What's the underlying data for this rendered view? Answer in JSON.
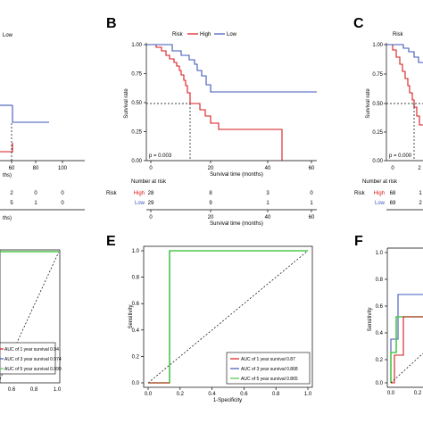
{
  "panels": {
    "A": {
      "legend_low": "Low",
      "xticks": [
        "60",
        "80",
        "100"
      ],
      "xlabel_tail": "ths)",
      "risk_counts": {
        "high": [
          "2",
          "0",
          "0"
        ],
        "low": [
          "5",
          "1",
          "0"
        ]
      },
      "xlabel2_tail": "ths)"
    },
    "B": {
      "letter": "B",
      "legend_title": "Risk",
      "legend_high": "High",
      "legend_low": "Low",
      "ylabel": "Survival rate",
      "yticks": [
        "0.00",
        "0.25",
        "0.50",
        "0.75",
        "1.00"
      ],
      "xticks": [
        "0",
        "20",
        "40",
        "60"
      ],
      "xlabel": "Survival time (months)",
      "pvalue": "p = 0.003",
      "risk_title": "Number at risk",
      "risk_group_label": "Risk",
      "risk_rows": [
        {
          "label": "High",
          "counts": [
            "28",
            "8",
            "3",
            "0"
          ]
        },
        {
          "label": "Low",
          "counts": [
            "29",
            "9",
            "1",
            "1"
          ]
        }
      ],
      "risk_xticks": [
        "0",
        "20",
        "40",
        "60"
      ],
      "risk_xlabel": "Survival time (months)"
    },
    "C": {
      "letter": "C",
      "legend_title": "Risk",
      "ytick_top": "1.00",
      "ytick_75": "0.75",
      "ytick_50": "0.50",
      "ytick_25": "0.25",
      "ytick_0": "0.00",
      "ylabel": "Survival rate",
      "pvalue": "p = 0.000",
      "xticks": [
        "0",
        "2"
      ],
      "risk_title": "Number at risk",
      "risk_group_label": "Risk",
      "risk_high_label": "High",
      "risk_low_label": "Low",
      "risk_high": [
        "68",
        "1"
      ],
      "risk_low": [
        "69",
        "2"
      ]
    },
    "D": {
      "auc_labels": [
        "AUC of 1 year survival  0.94",
        "AUC of 3 year survival  0.974",
        "AUC of 5 year survival  0.999"
      ],
      "xticks": [
        "0.6",
        "0.8",
        "1.0"
      ]
    },
    "E": {
      "letter": "E",
      "ylabel": "Sensitivity",
      "yticks": [
        "0.0",
        "0.2",
        "0.4",
        "0.6",
        "0.8",
        "1.0"
      ],
      "xticks": [
        "0.0",
        "0.2",
        "0.4",
        "0.6",
        "0.8",
        "1.0"
      ],
      "xlabel": "1-Specificity",
      "auc_labels": [
        "AUC of 1 year survival  0.87",
        "AUC of 3 year survival  0.868",
        "AUC of 5 year survival  0.865"
      ]
    },
    "F": {
      "letter": "F",
      "ylabel": "Sensitivity",
      "ytick_top": "1.0",
      "ytick_8": "0.8",
      "ytick_6": "0.6",
      "ytick_4": "0.4",
      "ytick_2": "0.2",
      "ytick_0": "0.0",
      "xticks": [
        "0.0",
        "0.2"
      ]
    }
  },
  "colors": {
    "high": "#d7191c",
    "low": "#3e57b8",
    "year1": "#d7191c",
    "year3": "#3e57b8",
    "year5": "#4cc94a",
    "ref": "#000000"
  }
}
